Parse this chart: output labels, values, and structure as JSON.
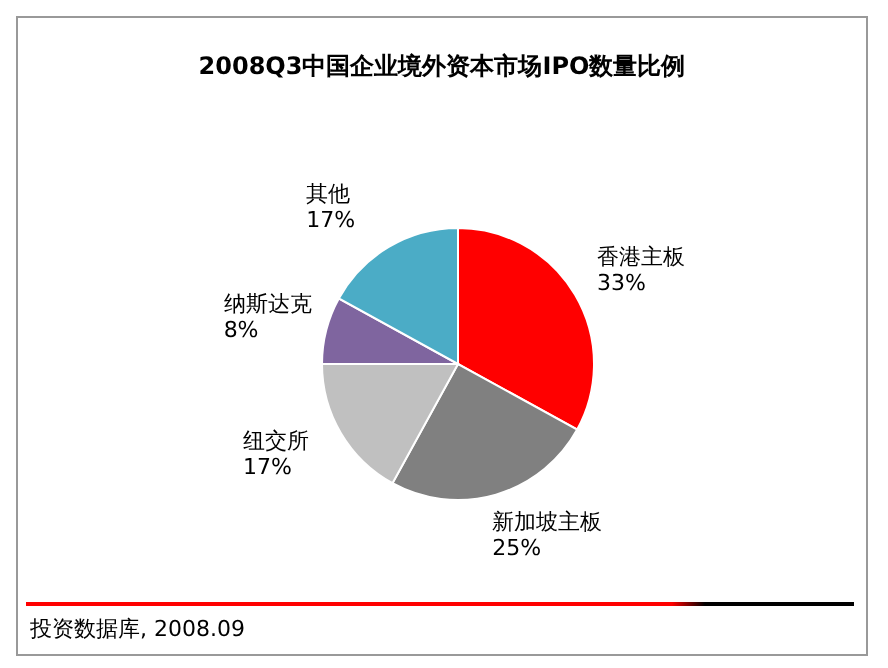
{
  "chart_data": {
    "type": "pie",
    "title": "2008Q3中国企业境外资本市场IPO数量比例",
    "categories": [
      "香港主板",
      "新加坡主板",
      "纽交所",
      "纳斯达克",
      "其他"
    ],
    "values": [
      33,
      25,
      17,
      8,
      17
    ],
    "value_labels": [
      "33%",
      "25%",
      "17%",
      "8%",
      "17%"
    ],
    "colors": [
      "#ff0000",
      "#808080",
      "#c0c0c0",
      "#7f659f",
      "#4bacc6"
    ],
    "annotations": [
      "投资数据库, 2008.09"
    ],
    "legend": false
  }
}
